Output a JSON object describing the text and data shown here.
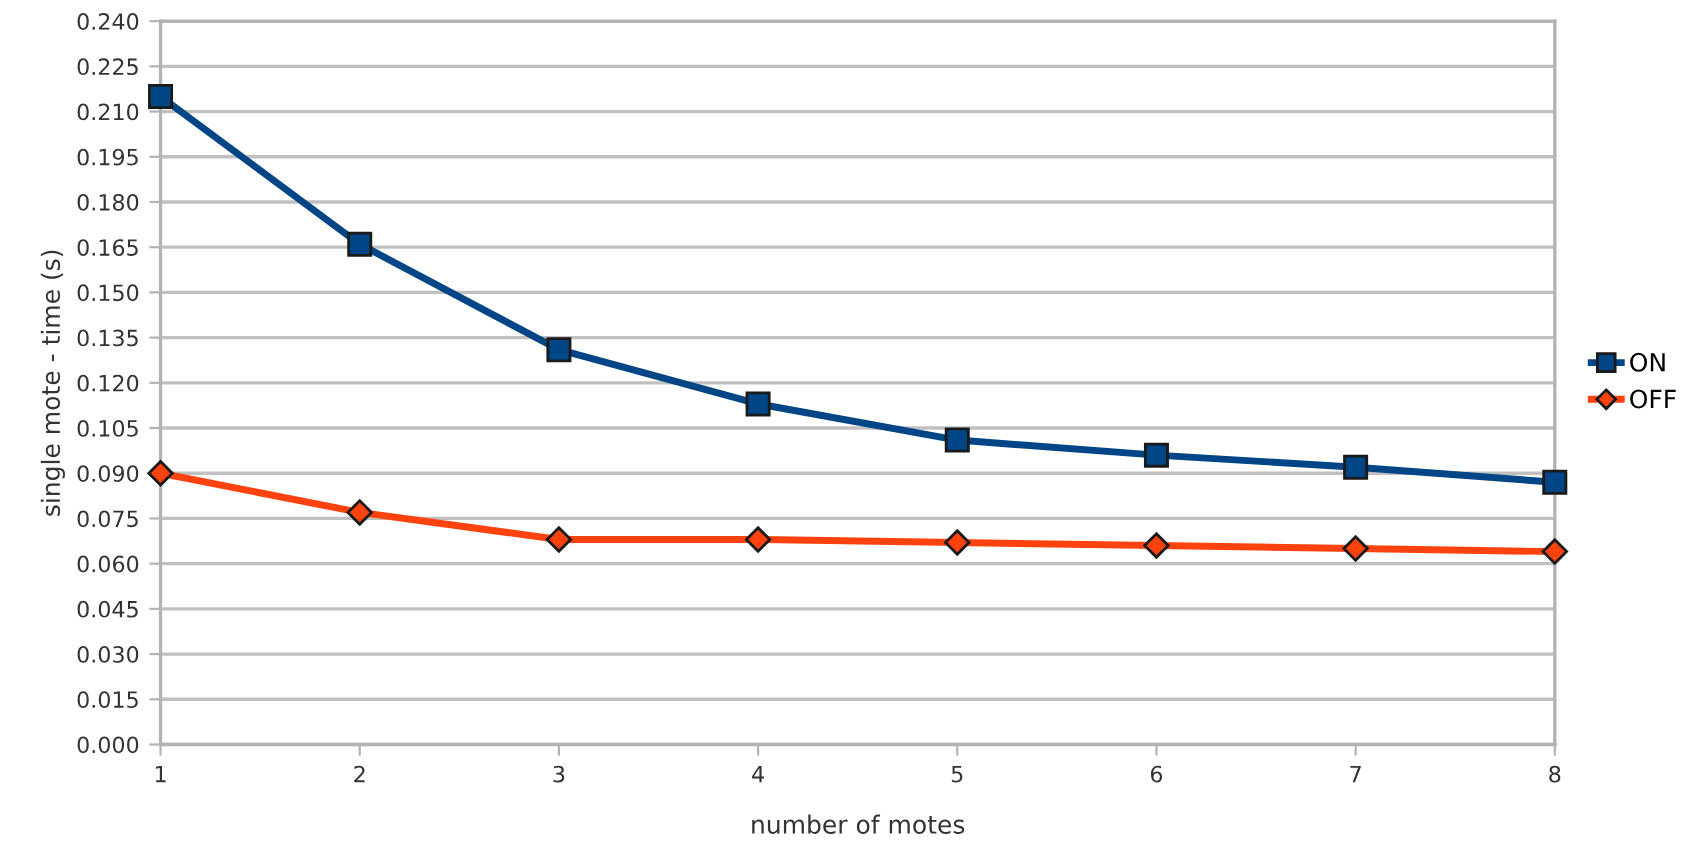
{
  "chart_data": {
    "type": "line",
    "xlabel": "number of motes",
    "ylabel": "single mote - time (s)",
    "x": [
      1,
      2,
      3,
      4,
      5,
      6,
      7,
      8
    ],
    "xlim": [
      1,
      8
    ],
    "xticks": [
      1,
      2,
      3,
      4,
      5,
      6,
      7,
      8
    ],
    "ylim": [
      0,
      0.24
    ],
    "yticks": [
      {
        "value": 0,
        "label": "0.000"
      },
      {
        "value": 0.015,
        "label": "0.015"
      },
      {
        "value": 0.03,
        "label": "0.030"
      },
      {
        "value": 0.045,
        "label": "0.045"
      },
      {
        "value": 0.06,
        "label": "0.060"
      },
      {
        "value": 0.075,
        "label": "0.075"
      },
      {
        "value": 0.09,
        "label": "0.090"
      },
      {
        "value": 0.105,
        "label": "0.105"
      },
      {
        "value": 0.12,
        "label": "0.120"
      },
      {
        "value": 0.135,
        "label": "0.135"
      },
      {
        "value": 0.15,
        "label": "0.150"
      },
      {
        "value": 0.165,
        "label": "0.165"
      },
      {
        "value": 0.18,
        "label": "0.180"
      },
      {
        "value": 0.195,
        "label": "0.195"
      },
      {
        "value": 0.21,
        "label": "0.210"
      },
      {
        "value": 0.225,
        "label": "0.225"
      },
      {
        "value": 0.24,
        "label": "0.240"
      }
    ],
    "grid": "y",
    "legend": "right",
    "series": [
      {
        "name": "ON",
        "color": "#004586",
        "marker": "square",
        "values": [
          0.215,
          0.166,
          0.131,
          0.113,
          0.101,
          0.096,
          0.092,
          0.087
        ]
      },
      {
        "name": "OFF",
        "color": "#ff420e",
        "marker": "diamond",
        "values": [
          0.09,
          0.077,
          0.068,
          0.068,
          0.067,
          0.066,
          0.065,
          0.064
        ]
      }
    ]
  }
}
